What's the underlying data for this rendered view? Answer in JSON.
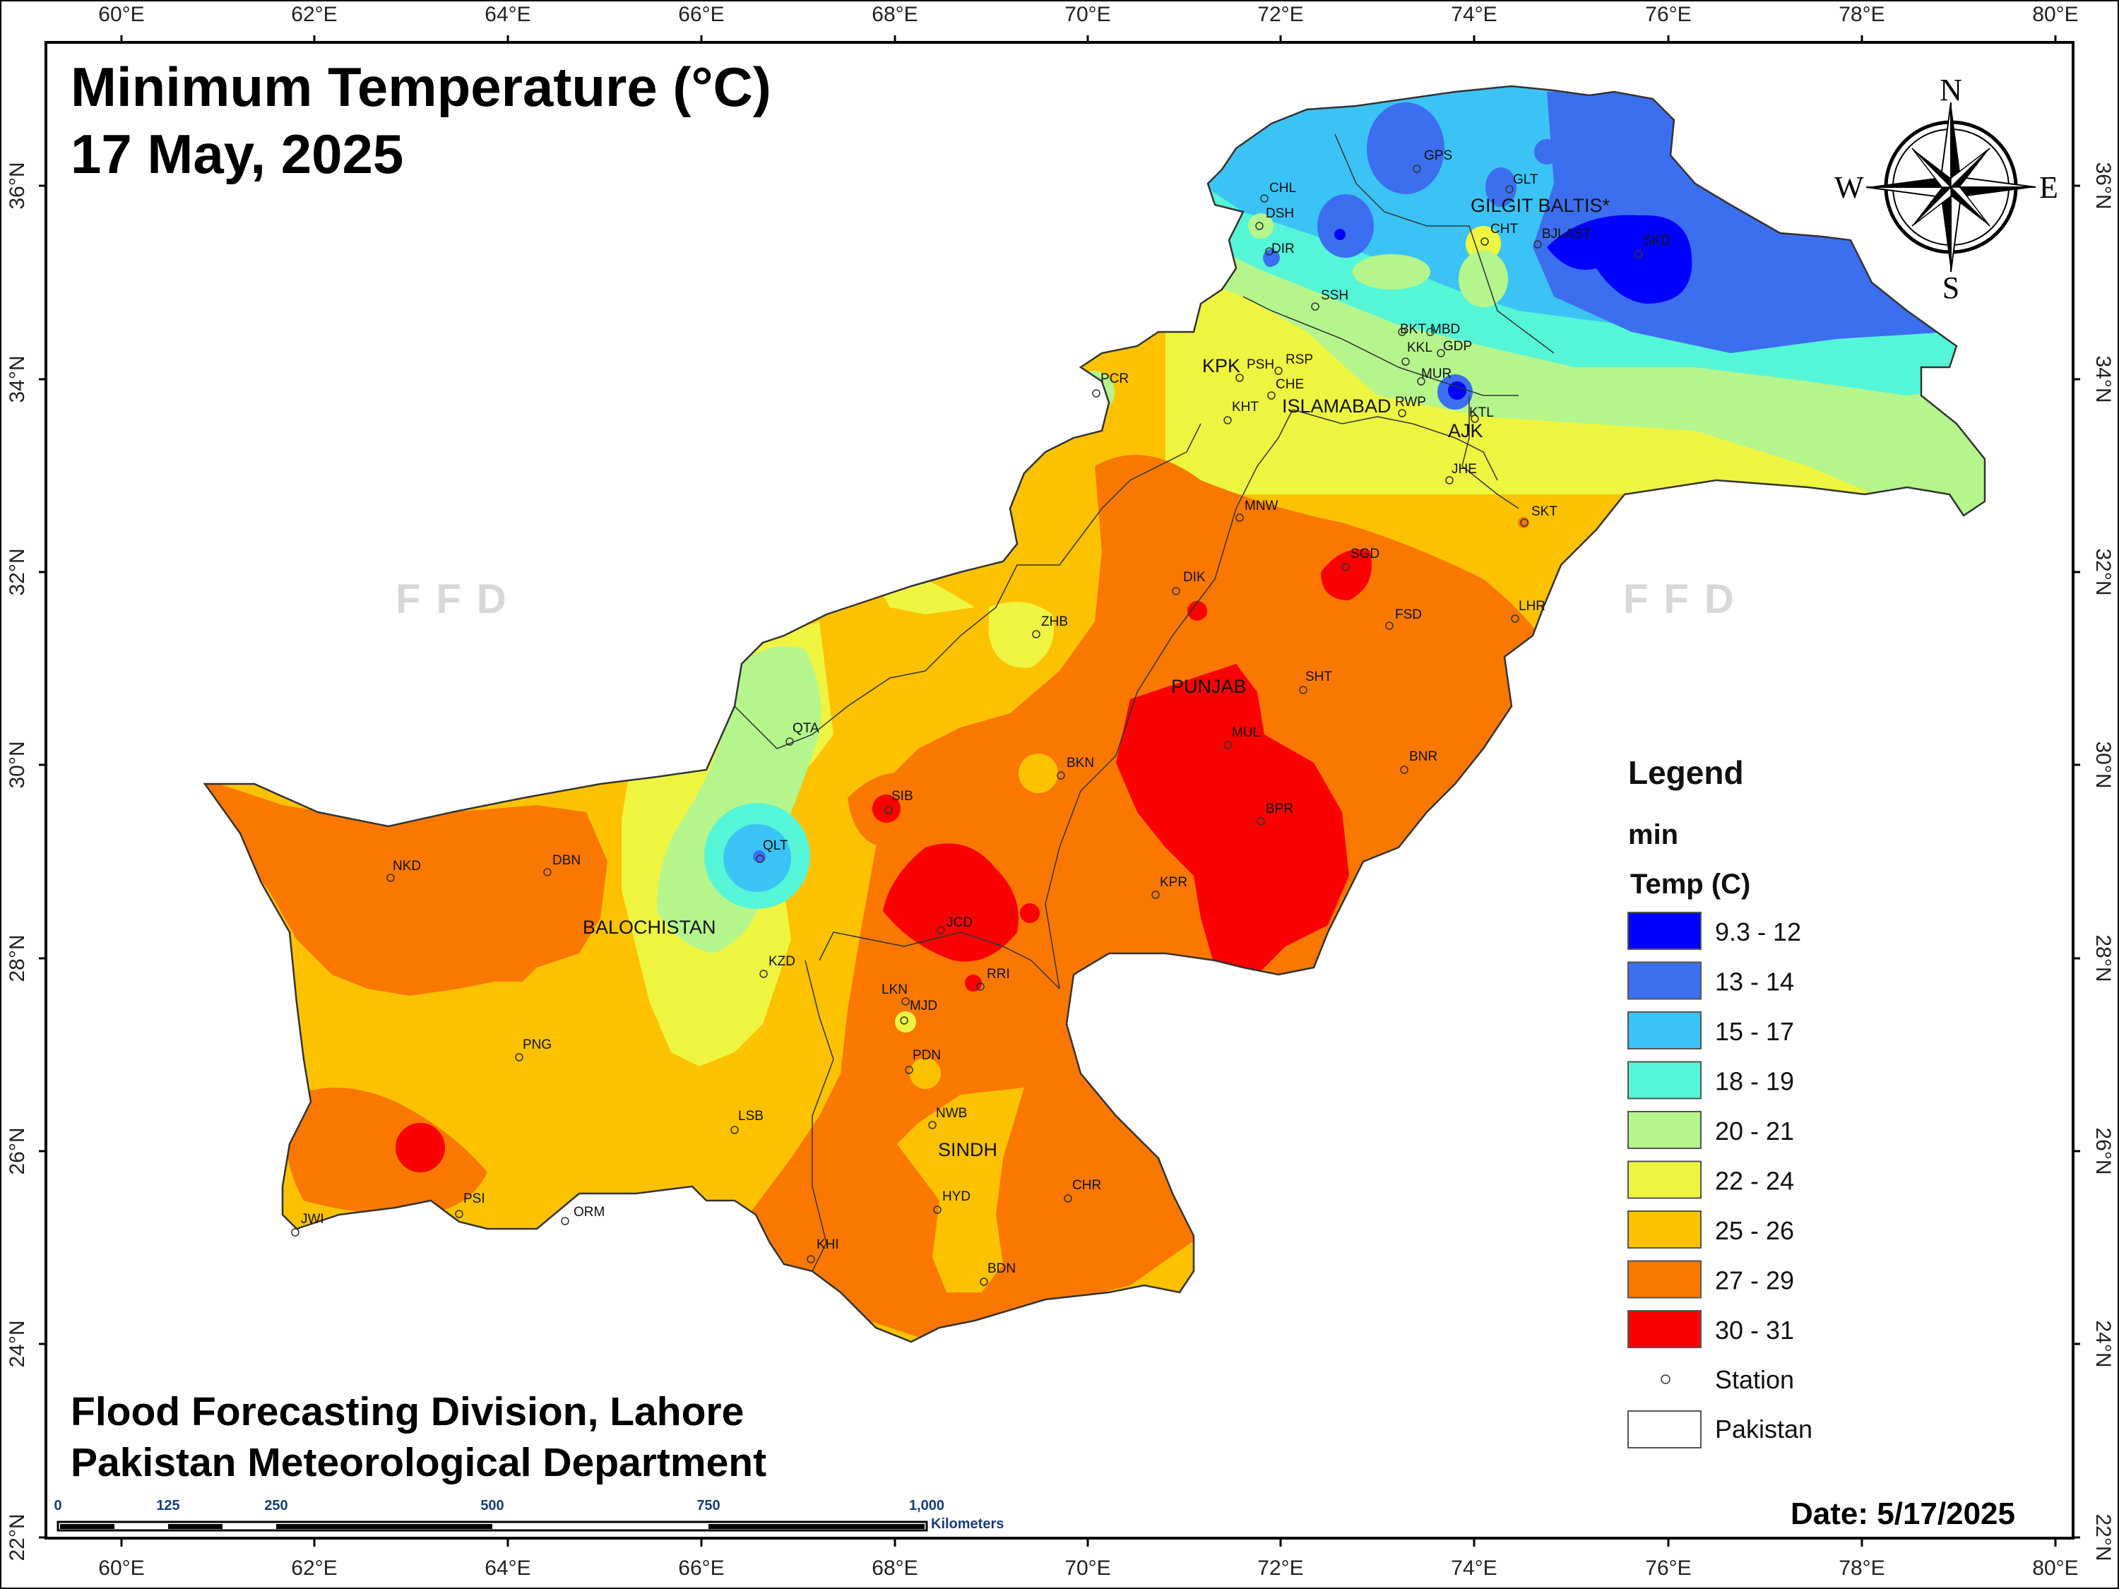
{
  "title_line1": "Minimum Temperature (°C)",
  "title_line2": "17 May, 2025",
  "credit_line1": "Flood Forecasting Division, Lahore",
  "credit_line2": "Pakistan Meteorological Department",
  "date_label": "Date: 5/17/2025",
  "watermark": "FFD",
  "compass": {
    "n": "N",
    "e": "E",
    "s": "S",
    "w": "W"
  },
  "lon_ticks": [
    "60°E",
    "62°E",
    "64°E",
    "66°E",
    "68°E",
    "70°E",
    "72°E",
    "74°E",
    "76°E",
    "78°E",
    "80°E"
  ],
  "lat_ticks": [
    "22°N",
    "24°N",
    "26°N",
    "28°N",
    "30°N",
    "32°N",
    "34°N",
    "36°N"
  ],
  "legend": {
    "title": "Legend",
    "layer": "min",
    "field": "Temp (C)",
    "classes": [
      {
        "label": "9.3 - 12",
        "color": "#0000ff"
      },
      {
        "label": "13 - 14",
        "color": "#3c6ef0"
      },
      {
        "label": "15 - 17",
        "color": "#3cc3f5"
      },
      {
        "label": "18 - 19",
        "color": "#55f5d7"
      },
      {
        "label": "20 - 21",
        "color": "#b4f58c"
      },
      {
        "label": "22 - 24",
        "color": "#eef540"
      },
      {
        "label": "25 - 26",
        "color": "#fcc200"
      },
      {
        "label": "27 - 29",
        "color": "#fa7800"
      },
      {
        "label": "30 - 31",
        "color": "#fa0000"
      }
    ],
    "station_label": "Station",
    "boundary_label": "Pakistan"
  },
  "scale_bar": {
    "labels": [
      "0",
      "125",
      "250",
      "500",
      "750",
      "1,000"
    ],
    "unit": "Kilometers"
  },
  "provinces": {
    "gb": "GILGIT BALTIS*",
    "kpk": "KPK",
    "islamabad": "ISLAMABAD",
    "ajk": "AJK",
    "punjab": "PUNJAB",
    "balochistan": "BALOCHISTAN",
    "sindh": "SINDH"
  },
  "stations": {
    "gps": "GPS",
    "glt": "GLT",
    "chl": "CHL",
    "dsh": "DSH",
    "dir": "DIR",
    "cht": "CHT",
    "bjl": "BJLAST",
    "skd": "SKD",
    "ssh": "SSH",
    "bkt": "BKT",
    "mbd": "MBD",
    "kkl": "KKL",
    "gdp": "GDP",
    "mur": "MUR",
    "rwp": "RWP",
    "ktl": "KTL",
    "psh": "PSH",
    "rsp": "RSP",
    "che": "CHE",
    "kht": "KHT",
    "pcr": "PCR",
    "jhe": "JHE",
    "skt": "SKT",
    "mnw": "MNW",
    "sgd": "SGD",
    "dik": "DIK",
    "lhr": "LHR",
    "fsd": "FSD",
    "zhb": "ZHB",
    "sht": "SHT",
    "qta": "QTA",
    "mul": "MUL",
    "bnr": "BNR",
    "bkn": "BKN",
    "sib": "SIB",
    "bpr": "BPR",
    "qlt": "QLT",
    "nkd": "NKD",
    "dbn": "DBN",
    "kpr": "KPR",
    "jcd": "JCD",
    "kzd": "KZD",
    "rri": "RRI",
    "lkn": "LKN",
    "mjd": "MJD",
    "png": "PNG",
    "pdn": "PDN",
    "nwb": "NWB",
    "lsb": "LSB",
    "chr": "CHR",
    "hyd": "HYD",
    "jwi": "JWI",
    "psi": "PSI",
    "orm": "ORM",
    "khi": "KHI",
    "bdn": "BDN"
  }
}
